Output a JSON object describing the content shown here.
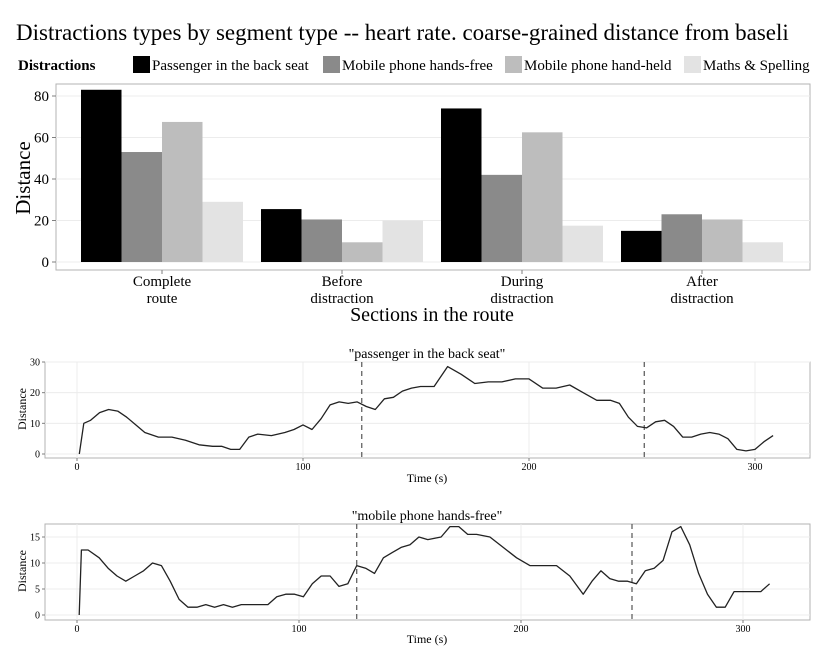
{
  "title": "Distractions types by segment type -- heart rate. coarse-grained distance from baseli",
  "legend": {
    "title": "Distractions",
    "items": [
      {
        "label": "Passenger in the back seat",
        "color": "#000000"
      },
      {
        "label": "Mobile phone hands-free",
        "color": "#8a8a8a"
      },
      {
        "label": "Mobile phone hand-held",
        "color": "#bdbdbd"
      },
      {
        "label": "Maths & Spelling",
        "color": "#e3e3e3"
      }
    ]
  },
  "chart_data": [
    {
      "type": "bar",
      "xlabel": "Sections in the route",
      "ylabel": "Distance",
      "ylim": [
        0,
        85
      ],
      "yticks": [
        0,
        20,
        40,
        60,
        80
      ],
      "categories": [
        [
          "Complete",
          "route"
        ],
        [
          "Before",
          "distraction"
        ],
        [
          "During",
          "distraction"
        ],
        [
          "After",
          "distraction"
        ]
      ],
      "series": [
        {
          "name": "Passenger in the back seat",
          "color": "#000000",
          "values": [
            83,
            25.5,
            74,
            15
          ]
        },
        {
          "name": "Mobile phone hands-free",
          "color": "#8a8a8a",
          "values": [
            53,
            20.5,
            42,
            23
          ]
        },
        {
          "name": "Mobile phone hand-held",
          "color": "#bdbdbd",
          "values": [
            67.5,
            9.5,
            62.5,
            20.5
          ]
        },
        {
          "name": "Maths & Spelling",
          "color": "#e3e3e3",
          "values": [
            29,
            20,
            17.5,
            9.5
          ]
        }
      ]
    },
    {
      "type": "line",
      "title": "\"passenger in the back seat\"",
      "xlabel": "Time (s)",
      "ylabel": "Distance",
      "xlim": [
        -8,
        322
      ],
      "ylim": [
        -1,
        30
      ],
      "xticks": [
        0,
        100,
        200,
        300
      ],
      "yticks": [
        0,
        10,
        20,
        30
      ],
      "vlines": [
        126,
        251
      ],
      "x": [
        1,
        3,
        6,
        10,
        14,
        18,
        22,
        26,
        30,
        36,
        42,
        48,
        54,
        60,
        64,
        68,
        72,
        76,
        80,
        86,
        92,
        96,
        100,
        104,
        108,
        112,
        116,
        120,
        124,
        128,
        132,
        136,
        140,
        144,
        148,
        152,
        158,
        164,
        170,
        176,
        182,
        188,
        194,
        200,
        206,
        212,
        218,
        224,
        230,
        236,
        240,
        244,
        248,
        252,
        256,
        260,
        264,
        268,
        272,
        276,
        280,
        284,
        288,
        292,
        296,
        300,
        304,
        308
      ],
      "y": [
        0,
        10,
        11,
        13.5,
        14.5,
        14,
        12,
        9.5,
        7,
        5.5,
        5.5,
        4.5,
        3,
        2.5,
        2.5,
        1.5,
        1.5,
        5.5,
        6.5,
        6,
        7,
        8,
        9.5,
        8,
        11.5,
        16,
        17,
        16.5,
        17,
        15.5,
        14.5,
        18,
        18.5,
        20.5,
        21.5,
        22,
        22,
        28.5,
        26,
        23,
        23.5,
        23.5,
        24.5,
        24.5,
        21.5,
        21.5,
        22.5,
        20,
        17.5,
        17.5,
        16.5,
        12,
        9,
        8.5,
        10.5,
        11,
        9,
        5.5,
        5.5,
        6.5,
        7,
        6.5,
        5,
        1.5,
        1,
        1.5,
        4,
        6
      ]
    },
    {
      "type": "line",
      "title": "\"mobile phone hands-free\"",
      "xlabel": "Time (s)",
      "ylabel": "Distance",
      "xlim": [
        -12,
        328
      ],
      "ylim": [
        -0.5,
        18
      ],
      "xticks": [
        0,
        100,
        200,
        300
      ],
      "yticks": [
        0,
        5,
        10,
        15
      ],
      "vlines": [
        126,
        250
      ],
      "x": [
        1,
        2,
        5,
        10,
        14,
        18,
        22,
        26,
        30,
        34,
        38,
        42,
        46,
        50,
        54,
        58,
        62,
        66,
        70,
        74,
        80,
        86,
        90,
        94,
        98,
        102,
        106,
        110,
        114,
        118,
        122,
        126,
        130,
        134,
        138,
        142,
        146,
        150,
        154,
        158,
        164,
        168,
        172,
        176,
        180,
        186,
        192,
        198,
        204,
        210,
        216,
        222,
        228,
        232,
        236,
        240,
        244,
        248,
        252,
        256,
        260,
        264,
        268,
        272,
        276,
        280,
        284,
        288,
        292,
        296,
        300,
        304,
        308,
        312
      ],
      "y": [
        0,
        12.5,
        12.5,
        11,
        9,
        7.5,
        6.5,
        7.5,
        8.5,
        10,
        9.5,
        6.5,
        3,
        1.5,
        1.5,
        2,
        1.5,
        2,
        1.5,
        2,
        2,
        2,
        3.5,
        4,
        4,
        3.5,
        6,
        7.5,
        7.5,
        5.5,
        6,
        9.5,
        9,
        8,
        11,
        12,
        13,
        13.5,
        15,
        14.5,
        15,
        17,
        17,
        15.5,
        15.5,
        15,
        13,
        11,
        9.5,
        9.5,
        9.5,
        7.5,
        4,
        6.5,
        8.5,
        7,
        6.5,
        6.5,
        6,
        8.5,
        9,
        10.5,
        16,
        17,
        13.5,
        8,
        4,
        1.5,
        1.5,
        4.5,
        4.5,
        4.5,
        4.5,
        6
      ]
    }
  ]
}
